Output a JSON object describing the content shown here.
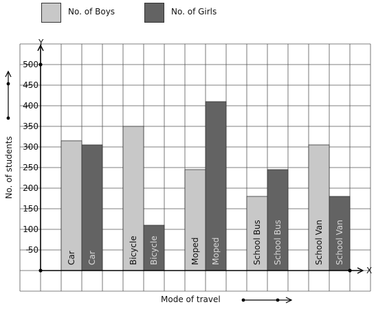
{
  "legend": [
    {
      "label": "No. of Boys",
      "color": "#c8c8c8"
    },
    {
      "label": "No. of Girls",
      "color": "#636363"
    }
  ],
  "axes": {
    "y_letter": "Y",
    "x_letter": "X",
    "ylabel": "No. of students",
    "xlabel": "Mode of travel"
  },
  "chart_data": {
    "type": "bar",
    "xlabel": "Mode of travel",
    "ylabel": "No. of students",
    "ylim": [
      0,
      500
    ],
    "yticks": [
      "50",
      "100",
      "150",
      "200",
      "250",
      "300",
      "350",
      "400",
      "450",
      "500"
    ],
    "grid": true,
    "legend_position": "top-left",
    "categories": [
      "Car",
      "Bicycle",
      "Moped",
      "School Bus",
      "School Van"
    ],
    "series": [
      {
        "name": "No. of Boys",
        "color": "#c8c8c8",
        "values": [
          315,
          350,
          245,
          180,
          305
        ]
      },
      {
        "name": "No. of Girls",
        "color": "#636363",
        "values": [
          305,
          110,
          410,
          245,
          180
        ]
      }
    ]
  }
}
